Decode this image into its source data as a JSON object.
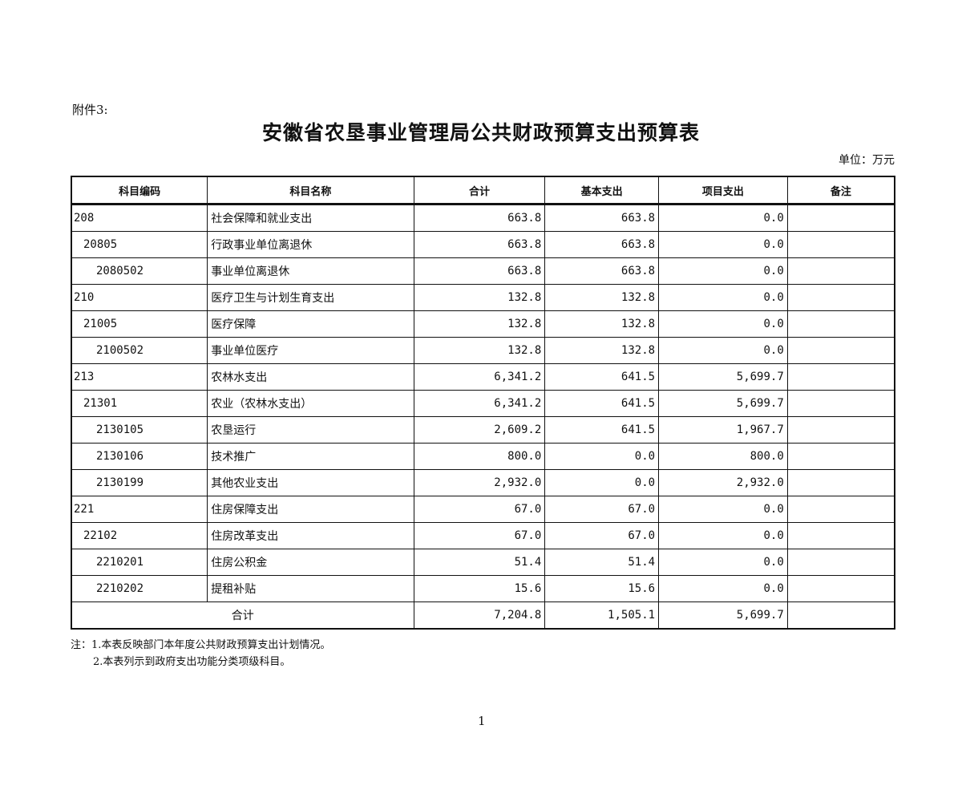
{
  "attachment": "附件3:",
  "title": "安徽省农垦事业管理局公共财政预算支出预算表",
  "unit": "单位：万元",
  "columns": [
    "科目编码",
    "科目名称",
    "合计",
    "基本支出",
    "项目支出",
    "备注"
  ],
  "rows": [
    {
      "code": "208",
      "level": 1,
      "name": "社会保障和就业支出",
      "total": "663.8",
      "basic": "663.8",
      "project": "0.0",
      "note": ""
    },
    {
      "code": "20805",
      "level": 2,
      "name": "行政事业单位离退休",
      "total": "663.8",
      "basic": "663.8",
      "project": "0.0",
      "note": ""
    },
    {
      "code": "2080502",
      "level": 3,
      "name": "事业单位离退休",
      "total": "663.8",
      "basic": "663.8",
      "project": "0.0",
      "note": ""
    },
    {
      "code": "210",
      "level": 1,
      "name": "医疗卫生与计划生育支出",
      "total": "132.8",
      "basic": "132.8",
      "project": "0.0",
      "note": ""
    },
    {
      "code": "21005",
      "level": 2,
      "name": "医疗保障",
      "total": "132.8",
      "basic": "132.8",
      "project": "0.0",
      "note": ""
    },
    {
      "code": "2100502",
      "level": 3,
      "name": "事业单位医疗",
      "total": "132.8",
      "basic": "132.8",
      "project": "0.0",
      "note": ""
    },
    {
      "code": "213",
      "level": 1,
      "name": "农林水支出",
      "total": "6,341.2",
      "basic": "641.5",
      "project": "5,699.7",
      "note": ""
    },
    {
      "code": "21301",
      "level": 2,
      "name": "农业（农林水支出）",
      "total": "6,341.2",
      "basic": "641.5",
      "project": "5,699.7",
      "note": ""
    },
    {
      "code": "2130105",
      "level": 3,
      "name": "农垦运行",
      "total": "2,609.2",
      "basic": "641.5",
      "project": "1,967.7",
      "note": ""
    },
    {
      "code": "2130106",
      "level": 3,
      "name": "技术推广",
      "total": "800.0",
      "basic": "0.0",
      "project": "800.0",
      "note": ""
    },
    {
      "code": "2130199",
      "level": 3,
      "name": "其他农业支出",
      "total": "2,932.0",
      "basic": "0.0",
      "project": "2,932.0",
      "note": ""
    },
    {
      "code": "221",
      "level": 1,
      "name": "住房保障支出",
      "total": "67.0",
      "basic": "67.0",
      "project": "0.0",
      "note": ""
    },
    {
      "code": "22102",
      "level": 2,
      "name": "住房改革支出",
      "total": "67.0",
      "basic": "67.0",
      "project": "0.0",
      "note": ""
    },
    {
      "code": "2210201",
      "level": 3,
      "name": "住房公积金",
      "total": "51.4",
      "basic": "51.4",
      "project": "0.0",
      "note": ""
    },
    {
      "code": "2210202",
      "level": 3,
      "name": "提租补贴",
      "total": "15.6",
      "basic": "15.6",
      "project": "0.0",
      "note": ""
    }
  ],
  "total_row": {
    "label": "合计",
    "total": "7,204.8",
    "basic": "1,505.1",
    "project": "5,699.7",
    "note": ""
  },
  "notes": [
    "注：1.本表反映部门本年度公共财政预算支出计划情况。",
    "2.本表列示到政府支出功能分类项级科目。"
  ],
  "page_number": "1"
}
